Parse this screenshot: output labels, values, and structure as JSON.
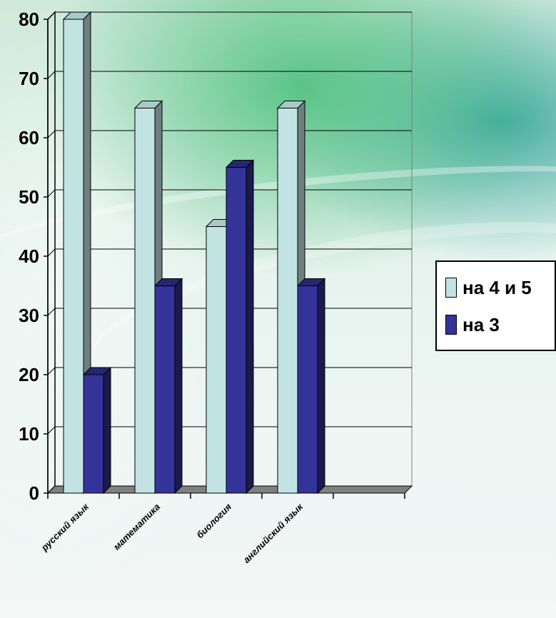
{
  "chart_data": {
    "type": "bar",
    "categories": [
      "русский язык",
      "математика",
      "биология",
      "английский язык",
      ""
    ],
    "series": [
      {
        "name": "на 4 и 5",
        "values": [
          80,
          65,
          45,
          65,
          null
        ],
        "color": "#c2e3e3"
      },
      {
        "name": "на 3",
        "values": [
          20,
          35,
          55,
          35,
          null
        ],
        "color": "#333399"
      }
    ],
    "ylim": [
      0,
      80
    ],
    "yticks": [
      "0",
      "10",
      "20",
      "30",
      "40",
      "50",
      "60",
      "70",
      "80"
    ],
    "grid": true,
    "legend_position": "right",
    "style": "3d-clustered"
  }
}
